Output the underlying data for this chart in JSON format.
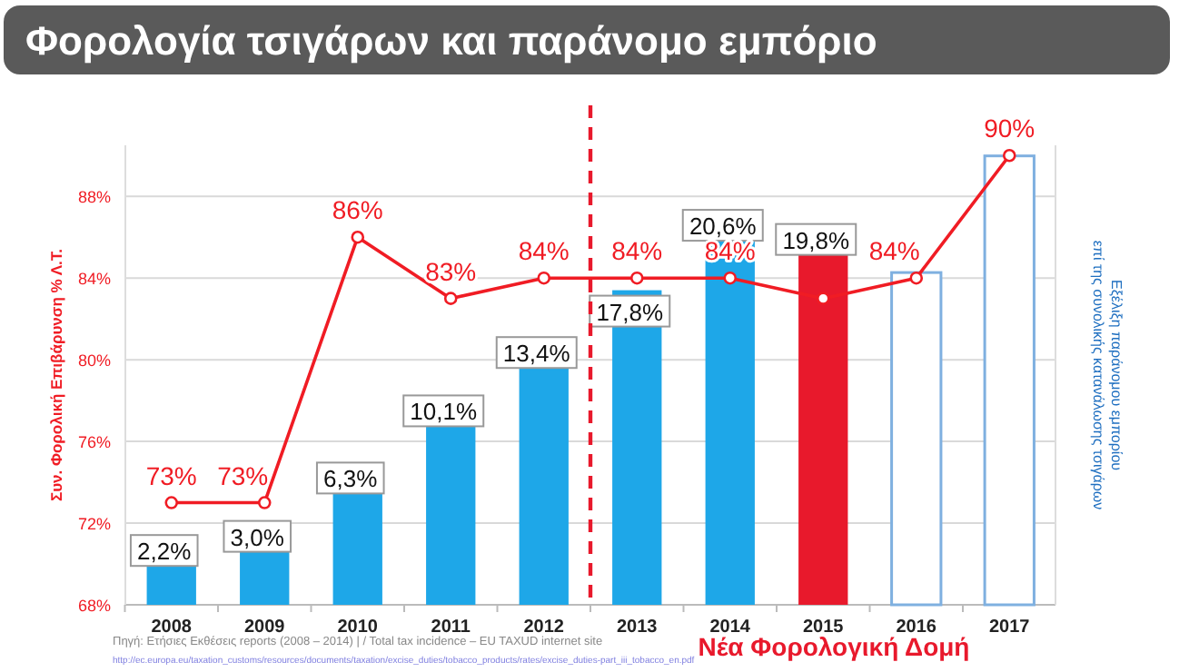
{
  "chart_data": {
    "type": "bar",
    "title": "Φορολογία τσιγάρων και παράνομο εμπόριο",
    "ylabel": "Συν. Φορολική Επιβάρυνση % Λ.Τ.",
    "y2label": "Εξέλιξη παράνομου εμπορίου επί της συνολικής κατανάλωσης τσιγάρων",
    "categories": [
      "2008",
      "2009",
      "2010",
      "2011",
      "2012",
      "2013",
      "2014",
      "2015",
      "2016",
      "2017"
    ],
    "series": [
      {
        "axis": "y2",
        "values": [
          2.2,
          3.0,
          6.3,
          10.1,
          13.4,
          17.8,
          20.6,
          19.8,
          18.8,
          25.4
        ],
        "colors": [
          "#1ea7e8",
          "#1ea7e8",
          "#1ea7e8",
          "#1ea7e8",
          "#1ea7e8",
          "#1ea7e8",
          "#1ea7e8",
          "#e8192c",
          "#ffffff",
          "#ffffff"
        ],
        "value_labels": [
          "2,2%",
          "3,0%",
          "6,3%",
          "10,1%",
          "13,4%",
          "17,8%",
          "20,6%",
          "19,8%",
          null,
          null
        ]
      },
      {
        "type": "line",
        "axis": "y",
        "color": "#f01c24",
        "values": [
          73,
          73,
          86,
          83,
          84,
          84,
          84,
          83,
          84,
          90
        ],
        "value_labels": [
          "73%",
          "73%",
          "86%",
          "83%",
          "84%",
          "84%",
          "84%",
          null,
          "84%",
          "90%"
        ]
      }
    ],
    "ylim": [
      68,
      90.5
    ],
    "yticks": [
      {
        "value": 68,
        "label": "68%"
      },
      {
        "value": 72,
        "label": "72%"
      },
      {
        "value": 76,
        "label": "76%"
      },
      {
        "value": 80,
        "label": "80%"
      },
      {
        "value": 84,
        "label": "84%"
      },
      {
        "value": 88,
        "label": "88%"
      }
    ],
    "y2lim": [
      0,
      26
    ],
    "tick_labels": "xy",
    "grid": "y",
    "marker": "circle",
    "ref_lines": [
      {
        "axis": "x",
        "value": "2013",
        "label": "Νέα Φορολογική Δομή",
        "color": "#e8192c",
        "line_style": "dashed"
      }
    ],
    "annotations": [
      "Πηγή: Ετήσιες Εκθέσεις reports (2008 – 2014) | / Total tax incidence – EU TAXUD internet site",
      "http://ec.europa.eu/taxation_customs/resources/documents/taxation/excise_duties/tobacco_products/rates/excise_duties-part_iii_tobacco_en.pdf"
    ]
  }
}
